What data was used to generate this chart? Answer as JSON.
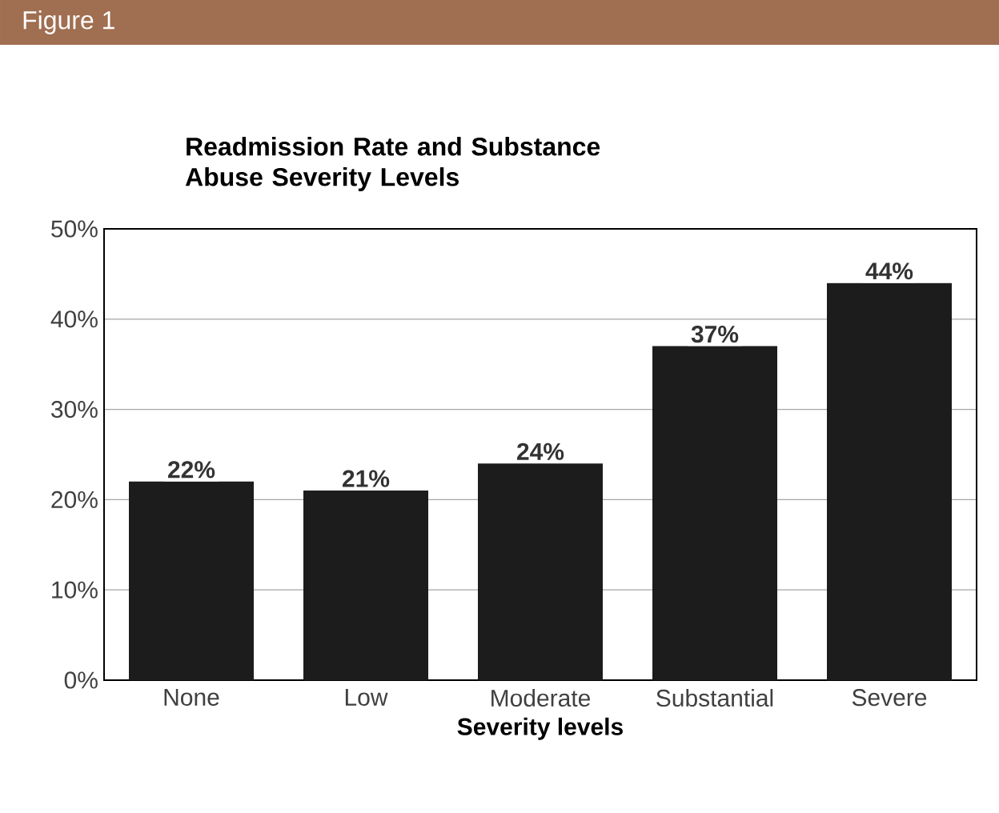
{
  "chart_data": {
    "type": "bar",
    "title": "Readmission Rate and Substance Abuse Severity Levels",
    "xlabel": "Severity levels",
    "annotations": [
      "Figure 1"
    ],
    "categories": [
      "None",
      "Low",
      "Moderate",
      "Substantial",
      "Severe"
    ],
    "values": [
      22,
      21,
      24,
      37,
      44
    ],
    "value_labels": [
      "22%",
      "21%",
      "24%",
      "37%",
      "44%"
    ],
    "color": "#1c1c1c",
    "ylim": [
      0,
      50
    ],
    "yticks": [
      {
        "value": 0,
        "label": "0%"
      },
      {
        "value": 10,
        "label": "10%"
      },
      {
        "value": 20,
        "label": "20%"
      },
      {
        "value": 30,
        "label": "30%"
      },
      {
        "value": 40,
        "label": "40%"
      },
      {
        "value": 50,
        "label": "50%"
      }
    ],
    "grid": "y"
  }
}
